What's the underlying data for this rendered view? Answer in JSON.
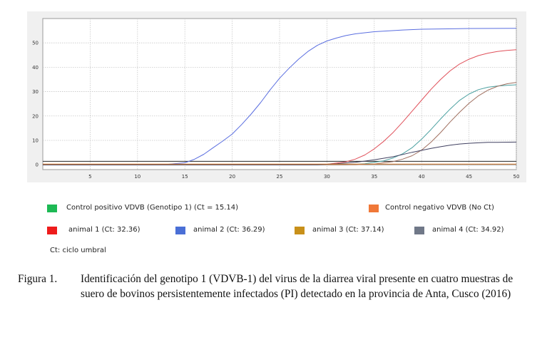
{
  "chart_data": {
    "type": "line",
    "xlim": [
      0,
      50
    ],
    "ylim": [
      -2,
      60
    ],
    "x_ticks": [
      5,
      10,
      15,
      20,
      25,
      30,
      35,
      40,
      45,
      50
    ],
    "y_ticks": [
      0,
      10,
      20,
      30,
      40,
      50
    ],
    "grid": true,
    "threshold": 1.4,
    "series": [
      {
        "key": "blue",
        "color": "#5a6ee0",
        "x": [
          0,
          11.5,
          13,
          15,
          16,
          17,
          18,
          19,
          20,
          21,
          22,
          23,
          24,
          25,
          26,
          27,
          28,
          29,
          30,
          31,
          32,
          33,
          35,
          38,
          40,
          45,
          50
        ],
        "y": [
          0,
          0,
          0.1,
          0.8,
          2.2,
          4.3,
          7,
          9.7,
          12.6,
          16.5,
          20.8,
          25.5,
          30.7,
          35.5,
          39.6,
          43.3,
          46.5,
          49,
          50.8,
          52,
          53,
          53.7,
          54.6,
          55.3,
          55.6,
          55.9,
          56
        ]
      },
      {
        "key": "red",
        "color": "#e0505a",
        "x": [
          0,
          28,
          30,
          32,
          33,
          34,
          35,
          36,
          37,
          38,
          39,
          40,
          41,
          42,
          43,
          44,
          45,
          46,
          47,
          48,
          49,
          50
        ],
        "y": [
          0,
          0,
          0.2,
          1.2,
          2.3,
          4,
          6.5,
          9.6,
          13.3,
          17.5,
          22,
          26.5,
          31,
          35,
          38.5,
          41.3,
          43.3,
          44.8,
          45.8,
          46.5,
          46.9,
          47.2
        ]
      },
      {
        "key": "teal",
        "color": "#4aa0a0",
        "x": [
          0,
          32,
          34,
          36,
          37,
          38,
          39,
          40,
          41,
          42,
          43,
          44,
          45,
          46,
          47,
          48,
          49,
          50
        ],
        "y": [
          0,
          0,
          0.4,
          1.6,
          2.8,
          4.5,
          7,
          10.5,
          14.5,
          18.8,
          22.8,
          26.4,
          29,
          30.8,
          31.8,
          32.3,
          32.6,
          32.8
        ]
      },
      {
        "key": "brown",
        "color": "#a07060",
        "x": [
          0,
          33,
          35,
          37,
          38,
          39,
          40,
          41,
          42,
          43,
          44,
          45,
          46,
          47,
          48,
          49,
          50
        ],
        "y": [
          0,
          0,
          0.3,
          1.3,
          2.3,
          3.7,
          6,
          9.3,
          13.2,
          17.5,
          21.5,
          25.2,
          28.3,
          30.6,
          32.2,
          33.2,
          33.8
        ]
      },
      {
        "key": "dark",
        "color": "#404060",
        "x": [
          0,
          29,
          31,
          33,
          35,
          37,
          38,
          39,
          40,
          41,
          42,
          43,
          44,
          45,
          46,
          47,
          48,
          50
        ],
        "y": [
          0,
          0,
          0.4,
          1,
          2,
          3.3,
          4.2,
          5.1,
          5.9,
          6.7,
          7.4,
          8,
          8.5,
          8.8,
          9,
          9.2,
          9.2,
          9.3
        ]
      },
      {
        "key": "orange",
        "color": "#e08030",
        "x": [
          0,
          50
        ],
        "y": [
          0.25,
          0.25
        ]
      }
    ]
  },
  "legend": [
    {
      "key": "positive",
      "label": "Control positivo VDVB (Genotipo 1) (Ct = 15.14)",
      "color": "#1db954"
    },
    {
      "key": "negative",
      "label": "Control negativo VDVB (No Ct)",
      "color": "#f07838"
    },
    {
      "key": "animal1",
      "label": "animal 1 (Ct: 32.36)",
      "color": "#ee1c1c"
    },
    {
      "key": "animal2",
      "label": "animal 2 (Ct: 36.29)",
      "color": "#4a6fd6"
    },
    {
      "key": "animal3",
      "label": "animal 3 (Ct: 37.14)",
      "color": "#c8901a"
    },
    {
      "key": "animal4",
      "label": "animal 4 (Ct: 34.92)",
      "color": "#707888"
    }
  ],
  "note": "Ct: ciclo umbral",
  "caption": {
    "label": "Figura 1.",
    "text": "Identificación del genotipo 1 (VDVB-1) del virus de la diarrea viral presente en cuatro muestras de suero de bovinos persistentemente infectados (PI) detectado en la provincia de Anta, Cusco (2016)"
  }
}
